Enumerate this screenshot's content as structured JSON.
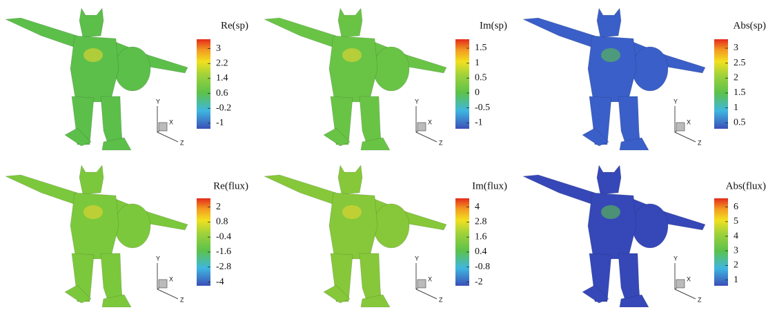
{
  "chart_data": [
    {
      "type": "colorbar",
      "title": "Re(sp)",
      "ylim": [
        -1.3,
        3.5
      ],
      "yticks": [
        3,
        2.2,
        1.4,
        0.6,
        -0.2,
        -1
      ],
      "axes_labels": [
        "Y",
        "X",
        "Z"
      ]
    },
    {
      "type": "colorbar",
      "title": "Im(sp)",
      "ylim": [
        -1.2,
        1.8
      ],
      "yticks": [
        1.5,
        1,
        0.5,
        0,
        -0.5,
        -1
      ],
      "axes_labels": [
        "Y",
        "X",
        "Z"
      ]
    },
    {
      "type": "colorbar",
      "title": "Abs(sp)",
      "ylim": [
        0.3,
        3.3
      ],
      "yticks": [
        3,
        2.5,
        2,
        1.5,
        1,
        0.5
      ],
      "axes_labels": [
        "Y",
        "X",
        "Z"
      ]
    },
    {
      "type": "colorbar",
      "title": "Re(flux)",
      "ylim": [
        -4.3,
        2.7
      ],
      "yticks": [
        2,
        0.8,
        -0.4,
        -1.6,
        -2.8,
        -4
      ],
      "axes_labels": [
        "Y",
        "X",
        "Z"
      ]
    },
    {
      "type": "colorbar",
      "title": "Im(flux)",
      "ylim": [
        -2.3,
        4.7
      ],
      "yticks": [
        4,
        2.8,
        1.6,
        0.4,
        -0.8,
        -2
      ],
      "axes_labels": [
        "Y",
        "X",
        "Z"
      ]
    },
    {
      "type": "colorbar",
      "title": "Abs(flux)",
      "ylim": [
        0.6,
        6.6
      ],
      "yticks": [
        6,
        5,
        4,
        3,
        2,
        1
      ],
      "axes_labels": [
        "Y",
        "X",
        "Z"
      ]
    }
  ]
}
